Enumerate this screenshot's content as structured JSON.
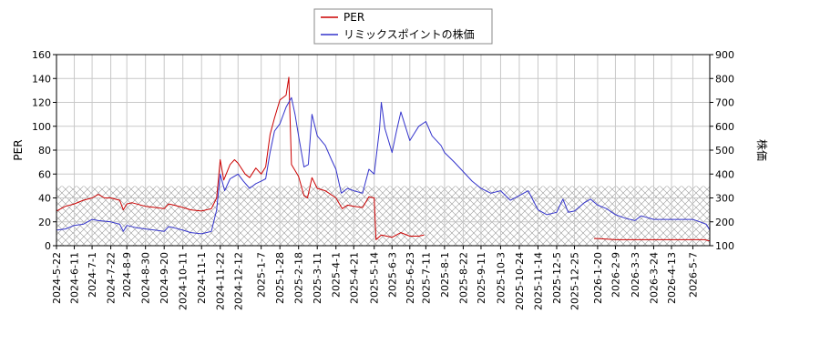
{
  "chart_data": {
    "type": "line",
    "ylabel_left": "PER",
    "ylabel_right": "株価",
    "ylim_left": [
      0,
      160
    ],
    "ylim_right": [
      100,
      900
    ],
    "y_ticks_left": [
      0,
      20,
      40,
      60,
      80,
      100,
      120,
      140,
      160
    ],
    "y_ticks_right": [
      100,
      200,
      300,
      400,
      500,
      600,
      700,
      800,
      900
    ],
    "x_tick_labels": [
      "2024-5-22",
      "2024-6-11",
      "2024-7-1",
      "2024-7-22",
      "2024-8-9",
      "2024-8-30",
      "2024-9-20",
      "2024-10-11",
      "2024-11-1",
      "2024-11-22",
      "2024-12-12",
      "2025-1-7",
      "2025-1-28",
      "2025-2-18",
      "2025-3-11",
      "2025-4-1",
      "2025-4-21",
      "2025-5-14",
      "2025-6-3",
      "2025-6-23",
      "2025-7-11",
      "2025-8-1",
      "2025-8-22",
      "2025-9-11",
      "2025-10-3",
      "2025-10-24",
      "2025-11-14",
      "2025-12-5",
      "2025-12-25",
      "2026-1-20",
      "2026-2-9",
      "2026-3-3",
      "2026-3-24",
      "2026-4-13",
      "2026-5-7"
    ],
    "x_range": [
      "2024-5-22",
      "2026-5-26"
    ],
    "grid": true,
    "legend_placement": "top-center",
    "hatched_band": {
      "from_left_axis": 0,
      "to_left_axis": 50
    },
    "colors": {
      "per": "#cc0000",
      "price": "#3333cc",
      "grid": "#c8c8c8",
      "hatch": "#999999"
    },
    "series": [
      {
        "name": "PER",
        "axis": "left",
        "color": "#cc0000",
        "points": [
          [
            "2024-5-22",
            29
          ],
          [
            "2024-6-1",
            33
          ],
          [
            "2024-6-11",
            35
          ],
          [
            "2024-6-21",
            38
          ],
          [
            "2024-7-1",
            40
          ],
          [
            "2024-7-8",
            43
          ],
          [
            "2024-7-15",
            40
          ],
          [
            "2024-7-22",
            40
          ],
          [
            "2024-8-1",
            38
          ],
          [
            "2024-8-5",
            30
          ],
          [
            "2024-8-9",
            35
          ],
          [
            "2024-8-15",
            36
          ],
          [
            "2024-8-30",
            33
          ],
          [
            "2024-9-10",
            32
          ],
          [
            "2024-9-20",
            31
          ],
          [
            "2024-9-25",
            35
          ],
          [
            "2024-10-1",
            34
          ],
          [
            "2024-10-11",
            32
          ],
          [
            "2024-10-20",
            30
          ],
          [
            "2024-11-1",
            29
          ],
          [
            "2024-11-12",
            31
          ],
          [
            "2024-11-18",
            40
          ],
          [
            "2024-11-22",
            72
          ],
          [
            "2024-11-26",
            55
          ],
          [
            "2024-12-3",
            68
          ],
          [
            "2024-12-8",
            72
          ],
          [
            "2024-12-12",
            69
          ],
          [
            "2024-12-20",
            60
          ],
          [
            "2024-12-25",
            57
          ],
          [
            "2025-1-1",
            65
          ],
          [
            "2025-1-7",
            60
          ],
          [
            "2025-1-12",
            66
          ],
          [
            "2025-1-17",
            93
          ],
          [
            "2025-1-22",
            107
          ],
          [
            "2025-1-28",
            122
          ],
          [
            "2025-2-4",
            126
          ],
          [
            "2025-2-7",
            141
          ],
          [
            "2025-2-10",
            68
          ],
          [
            "2025-2-18",
            58
          ],
          [
            "2025-2-24",
            42
          ],
          [
            "2025-2-28",
            40
          ],
          [
            "2025-3-5",
            57
          ],
          [
            "2025-3-11",
            48
          ],
          [
            "2025-3-20",
            46
          ],
          [
            "2025-4-1",
            40
          ],
          [
            "2025-4-8",
            31
          ],
          [
            "2025-4-14",
            34
          ],
          [
            "2025-4-21",
            33
          ],
          [
            "2025-5-1",
            32
          ],
          [
            "2025-5-8",
            41
          ],
          [
            "2025-5-14",
            40
          ],
          [
            "2025-5-16",
            5
          ],
          [
            "2025-5-22",
            9
          ],
          [
            "2025-6-3",
            7
          ],
          [
            "2025-6-13",
            11
          ],
          [
            "2025-6-23",
            8
          ],
          [
            "2025-7-3",
            8
          ],
          [
            "2025-7-9",
            9
          ],
          null,
          [
            "2026-1-16",
            6
          ],
          [
            "2026-1-20",
            6
          ],
          [
            "2026-2-9",
            5
          ],
          [
            "2026-3-3",
            5
          ],
          [
            "2026-3-24",
            5
          ],
          [
            "2026-4-13",
            5
          ],
          [
            "2026-5-7",
            5
          ],
          [
            "2026-5-20",
            5
          ],
          [
            "2026-5-26",
            4
          ]
        ]
      },
      {
        "name": "リミックスポイントの株価",
        "axis": "right",
        "color": "#3333cc",
        "points": [
          [
            "2024-5-22",
            165
          ],
          [
            "2024-6-1",
            170
          ],
          [
            "2024-6-11",
            185
          ],
          [
            "2024-6-21",
            190
          ],
          [
            "2024-7-1",
            210
          ],
          [
            "2024-7-8",
            205
          ],
          [
            "2024-7-22",
            200
          ],
          [
            "2024-8-1",
            190
          ],
          [
            "2024-8-5",
            160
          ],
          [
            "2024-8-9",
            185
          ],
          [
            "2024-8-20",
            175
          ],
          [
            "2024-8-30",
            170
          ],
          [
            "2024-9-10",
            165
          ],
          [
            "2024-9-20",
            160
          ],
          [
            "2024-9-25",
            180
          ],
          [
            "2024-10-1",
            175
          ],
          [
            "2024-10-11",
            165
          ],
          [
            "2024-10-20",
            155
          ],
          [
            "2024-11-1",
            150
          ],
          [
            "2024-11-12",
            160
          ],
          [
            "2024-11-18",
            250
          ],
          [
            "2024-11-22",
            400
          ],
          [
            "2024-11-27",
            330
          ],
          [
            "2024-12-3",
            380
          ],
          [
            "2024-12-12",
            400
          ],
          [
            "2024-12-18",
            370
          ],
          [
            "2024-12-25",
            340
          ],
          [
            "2025-1-1",
            360
          ],
          [
            "2025-1-7",
            370
          ],
          [
            "2025-1-12",
            380
          ],
          [
            "2025-1-17",
            490
          ],
          [
            "2025-1-22",
            580
          ],
          [
            "2025-1-28",
            610
          ],
          [
            "2025-2-4",
            680
          ],
          [
            "2025-2-10",
            720
          ],
          [
            "2025-2-14",
            650
          ],
          [
            "2025-2-18",
            560
          ],
          [
            "2025-2-24",
            430
          ],
          [
            "2025-3-1",
            440
          ],
          [
            "2025-3-5",
            650
          ],
          [
            "2025-3-11",
            560
          ],
          [
            "2025-3-20",
            520
          ],
          [
            "2025-3-27",
            460
          ],
          [
            "2025-4-1",
            420
          ],
          [
            "2025-4-7",
            320
          ],
          [
            "2025-4-14",
            340
          ],
          [
            "2025-4-21",
            330
          ],
          [
            "2025-5-1",
            320
          ],
          [
            "2025-5-8",
            420
          ],
          [
            "2025-5-14",
            400
          ],
          [
            "2025-5-20",
            590
          ],
          [
            "2025-5-22",
            700
          ],
          [
            "2025-5-26",
            590
          ],
          [
            "2025-6-3",
            490
          ],
          [
            "2025-6-8",
            580
          ],
          [
            "2025-6-13",
            660
          ],
          [
            "2025-6-18",
            600
          ],
          [
            "2025-6-23",
            540
          ],
          [
            "2025-6-28",
            570
          ],
          [
            "2025-7-3",
            600
          ],
          [
            "2025-7-11",
            620
          ],
          [
            "2025-7-18",
            560
          ],
          [
            "2025-7-28",
            520
          ],
          [
            "2025-8-1",
            490
          ],
          [
            "2025-8-12",
            450
          ],
          [
            "2025-8-22",
            410
          ],
          [
            "2025-9-1",
            370
          ],
          [
            "2025-9-11",
            340
          ],
          [
            "2025-9-22",
            320
          ],
          [
            "2025-10-3",
            330
          ],
          [
            "2025-10-14",
            290
          ],
          [
            "2025-10-24",
            310
          ],
          [
            "2025-11-3",
            330
          ],
          [
            "2025-11-14",
            250
          ],
          [
            "2025-11-24",
            230
          ],
          [
            "2025-12-5",
            240
          ],
          [
            "2025-12-12",
            295
          ],
          [
            "2025-12-18",
            240
          ],
          [
            "2025-12-25",
            245
          ],
          [
            "2026-1-5",
            280
          ],
          [
            "2026-1-12",
            295
          ],
          [
            "2026-1-20",
            270
          ],
          [
            "2026-1-30",
            255
          ],
          [
            "2026-2-9",
            230
          ],
          [
            "2026-2-20",
            215
          ],
          [
            "2026-3-3",
            205
          ],
          [
            "2026-3-10",
            225
          ],
          [
            "2026-3-24",
            210
          ],
          [
            "2026-4-13",
            210
          ],
          [
            "2026-4-30",
            210
          ],
          [
            "2026-5-7",
            210
          ],
          [
            "2026-5-15",
            200
          ],
          [
            "2026-5-22",
            190
          ],
          [
            "2026-5-26",
            165
          ]
        ]
      }
    ]
  }
}
